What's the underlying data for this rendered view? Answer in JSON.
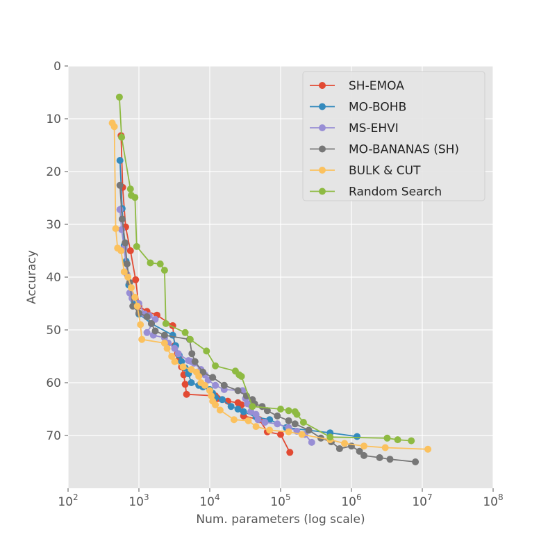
{
  "chart_data": {
    "type": "line",
    "title": "",
    "xlabel": "Num. parameters (log scale)",
    "ylabel": "Accuracy",
    "x_scale": "log",
    "y_inverted": true,
    "xlim": [
      100,
      100000000
    ],
    "ylim": [
      80,
      0
    ],
    "x_ticks": [
      {
        "value": 100,
        "base": "10",
        "exp": "2"
      },
      {
        "value": 1000,
        "base": "10",
        "exp": "3"
      },
      {
        "value": 10000,
        "base": "10",
        "exp": "4"
      },
      {
        "value": 100000,
        "base": "10",
        "exp": "5"
      },
      {
        "value": 1000000,
        "base": "10",
        "exp": "6"
      },
      {
        "value": 10000000,
        "base": "10",
        "exp": "7"
      },
      {
        "value": 100000000,
        "base": "10",
        "exp": "8"
      }
    ],
    "y_ticks": [
      "0",
      "10",
      "20",
      "30",
      "40",
      "50",
      "60",
      "70"
    ],
    "grid": true,
    "legend_position": "top-right",
    "series": [
      {
        "name": "SH-EMOA",
        "color": "#e24a33",
        "points": [
          [
            560,
            13.2
          ],
          [
            590,
            23.0
          ],
          [
            650,
            30.5
          ],
          [
            760,
            35.0
          ],
          [
            900,
            40.5
          ],
          [
            1000,
            45.5
          ],
          [
            1300,
            46.5
          ],
          [
            1800,
            47.2
          ],
          [
            3000,
            49.2
          ],
          [
            3200,
            53.0
          ],
          [
            3500,
            54.5
          ],
          [
            3700,
            55.5
          ],
          [
            4000,
            57.0
          ],
          [
            4300,
            58.5
          ],
          [
            4500,
            60.3
          ],
          [
            4700,
            62.2
          ],
          [
            12000,
            62.5
          ],
          [
            13000,
            63.0
          ],
          [
            18000,
            63.5
          ],
          [
            25000,
            63.8
          ],
          [
            28000,
            64.2
          ],
          [
            30000,
            66.3
          ],
          [
            50000,
            67.0
          ],
          [
            65000,
            69.3
          ],
          [
            100000,
            69.8
          ],
          [
            135000,
            73.2
          ]
        ]
      },
      {
        "name": "MO-BOHB",
        "color": "#348abd",
        "points": [
          [
            540,
            17.9
          ],
          [
            580,
            27.0
          ],
          [
            620,
            34.0
          ],
          [
            660,
            37.0
          ],
          [
            720,
            41.5
          ],
          [
            850,
            44.5
          ],
          [
            1000,
            47.0
          ],
          [
            1500,
            48.8
          ],
          [
            3000,
            51.0
          ],
          [
            3300,
            53.0
          ],
          [
            3700,
            54.8
          ],
          [
            4000,
            56.0
          ],
          [
            4500,
            57.2
          ],
          [
            5000,
            58.3
          ],
          [
            5500,
            60.0
          ],
          [
            7000,
            60.5
          ],
          [
            8000,
            60.8
          ],
          [
            10000,
            61.3
          ],
          [
            11000,
            62.0
          ],
          [
            12000,
            62.8
          ],
          [
            15000,
            63.2
          ],
          [
            20000,
            64.5
          ],
          [
            25000,
            65.0
          ],
          [
            30000,
            65.5
          ],
          [
            45000,
            66.5
          ],
          [
            70000,
            67.0
          ],
          [
            120000,
            68.5
          ],
          [
            500000,
            69.5
          ],
          [
            1200000,
            70.2
          ]
        ]
      },
      {
        "name": "MS-EHVI",
        "color": "#988ed5",
        "points": [
          [
            540,
            27.2
          ],
          [
            570,
            31.0
          ],
          [
            620,
            34.5
          ],
          [
            680,
            39.5
          ],
          [
            740,
            43.0
          ],
          [
            800,
            44.0
          ],
          [
            1000,
            45.0
          ],
          [
            1200,
            47.0
          ],
          [
            1400,
            47.3
          ],
          [
            1700,
            48.0
          ],
          [
            1300,
            50.5
          ],
          [
            1600,
            51.0
          ],
          [
            2300,
            51.5
          ],
          [
            2600,
            52.5
          ],
          [
            3200,
            53.5
          ],
          [
            3600,
            54.5
          ],
          [
            5000,
            55.8
          ],
          [
            5500,
            56.0
          ],
          [
            6000,
            56.3
          ],
          [
            7500,
            57.5
          ],
          [
            8500,
            58.5
          ],
          [
            9500,
            59.5
          ],
          [
            12000,
            60.5
          ],
          [
            16000,
            61.3
          ],
          [
            29000,
            61.5
          ],
          [
            32000,
            63.0
          ],
          [
            34000,
            64.0
          ],
          [
            38000,
            65.5
          ],
          [
            45000,
            66.0
          ],
          [
            48000,
            67.0
          ],
          [
            60000,
            67.5
          ],
          [
            90000,
            67.8
          ],
          [
            130000,
            68.5
          ],
          [
            170000,
            69.2
          ],
          [
            220000,
            69.8
          ],
          [
            275000,
            71.3
          ]
        ]
      },
      {
        "name": "MO-BANANAS (SH)",
        "color": "#777777",
        "points": [
          [
            540,
            22.6
          ],
          [
            580,
            29.0
          ],
          [
            640,
            33.5
          ],
          [
            680,
            37.5
          ],
          [
            740,
            41.0
          ],
          [
            820,
            45.5
          ],
          [
            1000,
            46.8
          ],
          [
            1300,
            47.5
          ],
          [
            1500,
            48.8
          ],
          [
            1700,
            50.2
          ],
          [
            2300,
            51.0
          ],
          [
            5200,
            51.8
          ],
          [
            5600,
            54.5
          ],
          [
            6200,
            56.0
          ],
          [
            8000,
            58.0
          ],
          [
            11000,
            59.0
          ],
          [
            16000,
            60.5
          ],
          [
            25000,
            61.5
          ],
          [
            33000,
            62.5
          ],
          [
            40000,
            63.2
          ],
          [
            43000,
            64.0
          ],
          [
            55000,
            64.5
          ],
          [
            65000,
            65.3
          ],
          [
            90000,
            66.3
          ],
          [
            130000,
            67.2
          ],
          [
            160000,
            67.8
          ],
          [
            250000,
            69.0
          ],
          [
            370000,
            70.5
          ],
          [
            520000,
            71.2
          ],
          [
            680000,
            72.5
          ],
          [
            1000000,
            72.0
          ],
          [
            1300000,
            73.0
          ],
          [
            1500000,
            73.8
          ],
          [
            2500000,
            74.2
          ],
          [
            3500000,
            74.5
          ],
          [
            8000000,
            75.0
          ]
        ]
      },
      {
        "name": "BULK & CUT",
        "color": "#fbc15e",
        "points": [
          [
            420,
            10.8
          ],
          [
            450,
            11.5
          ],
          [
            470,
            30.8
          ],
          [
            500,
            34.5
          ],
          [
            560,
            35.0
          ],
          [
            620,
            39.0
          ],
          [
            700,
            40.0
          ],
          [
            780,
            42.0
          ],
          [
            880,
            43.8
          ],
          [
            950,
            45.5
          ],
          [
            1050,
            49.0
          ],
          [
            1100,
            51.8
          ],
          [
            2300,
            52.5
          ],
          [
            2500,
            53.5
          ],
          [
            2900,
            55.0
          ],
          [
            3200,
            56.0
          ],
          [
            4200,
            57.0
          ],
          [
            5500,
            57.5
          ],
          [
            6500,
            58.0
          ],
          [
            7000,
            58.8
          ],
          [
            7500,
            60.0
          ],
          [
            8500,
            60.5
          ],
          [
            10000,
            61.5
          ],
          [
            10500,
            62.5
          ],
          [
            11000,
            63.5
          ],
          [
            12000,
            64.2
          ],
          [
            14000,
            65.2
          ],
          [
            22000,
            67.0
          ],
          [
            35000,
            67.2
          ],
          [
            45000,
            68.3
          ],
          [
            70000,
            69.0
          ],
          [
            130000,
            69.3
          ],
          [
            200000,
            69.8
          ],
          [
            500000,
            70.8
          ],
          [
            800000,
            71.5
          ],
          [
            1500000,
            72.0
          ],
          [
            3000000,
            72.3
          ],
          [
            12000000,
            72.6
          ]
        ]
      },
      {
        "name": "Random Search",
        "color": "#8eba42",
        "points": [
          [
            530,
            5.9
          ],
          [
            570,
            13.5
          ],
          [
            760,
            23.3
          ],
          [
            780,
            24.5
          ],
          [
            880,
            24.9
          ],
          [
            930,
            34.2
          ],
          [
            1450,
            37.3
          ],
          [
            2000,
            37.5
          ],
          [
            2300,
            38.7
          ],
          [
            2400,
            48.8
          ],
          [
            4500,
            50.5
          ],
          [
            5300,
            51.8
          ],
          [
            9000,
            54.0
          ],
          [
            12000,
            56.8
          ],
          [
            23000,
            57.8
          ],
          [
            26000,
            58.5
          ],
          [
            28000,
            58.8
          ],
          [
            40000,
            64.5
          ],
          [
            100000,
            65.0
          ],
          [
            130000,
            65.3
          ],
          [
            160000,
            65.5
          ],
          [
            170000,
            66.0
          ],
          [
            210000,
            67.5
          ],
          [
            500000,
            70.3
          ],
          [
            3200000,
            70.5
          ],
          [
            4500000,
            70.8
          ],
          [
            7000000,
            71.0
          ]
        ]
      }
    ]
  }
}
